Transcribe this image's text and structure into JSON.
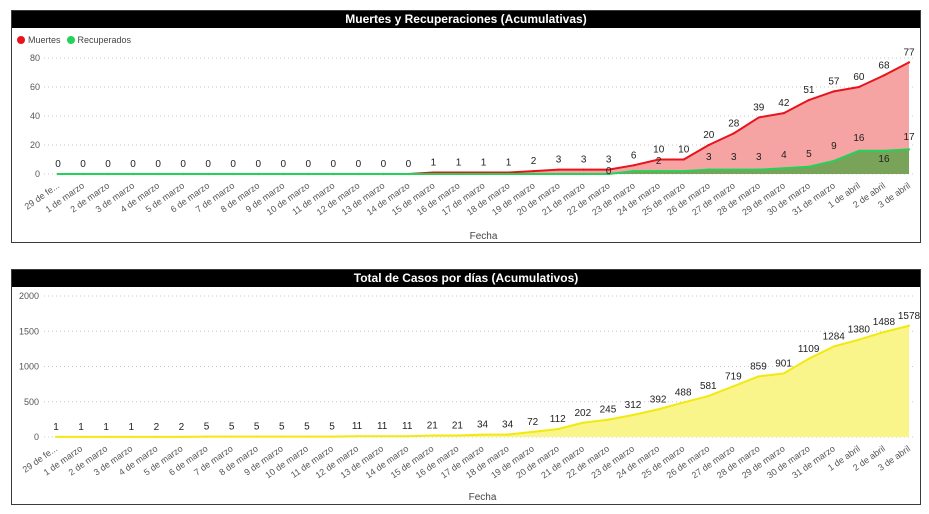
{
  "chart_data": [
    {
      "type": "area",
      "title": "Muertes y Recuperaciones (Acumulativas)",
      "xlabel": "Fecha",
      "ylabel": "",
      "ylim": [
        0,
        80
      ],
      "yticks": [
        0,
        20,
        40,
        60,
        80
      ],
      "grid": true,
      "legend_position": "top-left",
      "categories": [
        "29 de fe...",
        "1 de marzo",
        "2 de marzo",
        "3 de marzo",
        "4 de marzo",
        "5 de marzo",
        "6 de marzo",
        "7 de marzo",
        "8 de marzo",
        "9 de marzo",
        "10 de marzo",
        "11 de marzo",
        "12 de marzo",
        "13 de marzo",
        "14 de marzo",
        "15 de marzo",
        "16 de marzo",
        "17 de marzo",
        "18 de marzo",
        "19 de marzo",
        "20 de marzo",
        "21 de marzo",
        "22 de marzo",
        "23 de marzo",
        "24 de marzo",
        "25 de marzo",
        "26 de marzo",
        "27 de marzo",
        "28 de marzo",
        "29 de marzo",
        "30 de marzo",
        "31 de marzo",
        "1 de abril",
        "2 de abril",
        "3 de abril"
      ],
      "series": [
        {
          "name": "Muertes",
          "color": "#e8141b",
          "fill": "#f5a3a3",
          "values": [
            0,
            0,
            0,
            0,
            0,
            0,
            0,
            0,
            0,
            0,
            0,
            0,
            0,
            0,
            0,
            1,
            1,
            1,
            1,
            2,
            3,
            3,
            3,
            6,
            10,
            10,
            20,
            28,
            39,
            42,
            51,
            57,
            60,
            68,
            77
          ],
          "labels": [
            "0",
            "0",
            "0",
            "0",
            "0",
            "0",
            "0",
            "0",
            "0",
            "0",
            "0",
            "0",
            "0",
            "0",
            "0",
            "1",
            "1",
            "1",
            "1",
            "2",
            "3",
            "3",
            "3",
            "6",
            "10",
            "10",
            "20",
            "28",
            "39",
            "42",
            "51",
            "57",
            "60",
            "68",
            "77"
          ]
        },
        {
          "name": "Recuperados",
          "color": "#22d35a",
          "fill": "#7aa35a",
          "values": [
            0,
            0,
            0,
            0,
            0,
            0,
            0,
            0,
            0,
            0,
            0,
            0,
            0,
            0,
            0,
            0,
            0,
            0,
            0,
            0,
            0,
            0,
            0,
            2,
            2,
            2,
            3,
            3,
            3,
            4,
            5,
            9,
            16,
            16,
            17
          ],
          "labels": [
            "",
            "",
            "",
            "",
            "",
            "",
            "",
            "",
            "",
            "",
            "",
            "",
            "",
            "",
            "",
            "",
            "",
            "",
            "",
            "",
            "",
            "",
            "0",
            "",
            "2",
            "",
            "3",
            "3",
            "3",
            "4",
            "5",
            "9",
            "16",
            "16",
            "17"
          ]
        }
      ]
    },
    {
      "type": "area",
      "title": "Total de Casos por días (Acumulativos)",
      "xlabel": "Fecha",
      "ylabel": "",
      "ylim": [
        0,
        2000
      ],
      "yticks": [
        0,
        500,
        1000,
        1500,
        2000
      ],
      "grid": true,
      "categories": [
        "29 de fe...",
        "1 de marzo",
        "2 de marzo",
        "3 de marzo",
        "4 de marzo",
        "5 de marzo",
        "6 de marzo",
        "7 de marzo",
        "8 de marzo",
        "9 de marzo",
        "10 de marzo",
        "11 de marzo",
        "12 de marzo",
        "13 de marzo",
        "14 de marzo",
        "15 de marzo",
        "16 de marzo",
        "17 de marzo",
        "18 de marzo",
        "19 de marzo",
        "20 de marzo",
        "21 de marzo",
        "22 de marzo",
        "23 de marzo",
        "24 de marzo",
        "25 de marzo",
        "26 de marzo",
        "27 de marzo",
        "28 de marzo",
        "29 de marzo",
        "30 de marzo",
        "31 de marzo",
        "1 de abril",
        "2 de abril",
        "3 de abril"
      ],
      "series": [
        {
          "color": "#f2e90f",
          "fill": "#faf58a",
          "values": [
            1,
            1,
            1,
            1,
            2,
            2,
            5,
            5,
            5,
            5,
            5,
            5,
            11,
            11,
            11,
            21,
            21,
            34,
            34,
            72,
            112,
            202,
            245,
            312,
            392,
            488,
            581,
            719,
            859,
            901,
            1109,
            1284,
            1380,
            1488,
            1578
          ],
          "labels": [
            "1",
            "1",
            "1",
            "1",
            "2",
            "2",
            "5",
            "5",
            "5",
            "5",
            "5",
            "5",
            "11",
            "11",
            "11",
            "21",
            "21",
            "34",
            "34",
            "72",
            "112",
            "202",
            "245",
            "312",
            "392",
            "488",
            "581",
            "719",
            "859",
            "901",
            "1109",
            "1284",
            "1380",
            "1488",
            "1578"
          ]
        }
      ]
    }
  ]
}
